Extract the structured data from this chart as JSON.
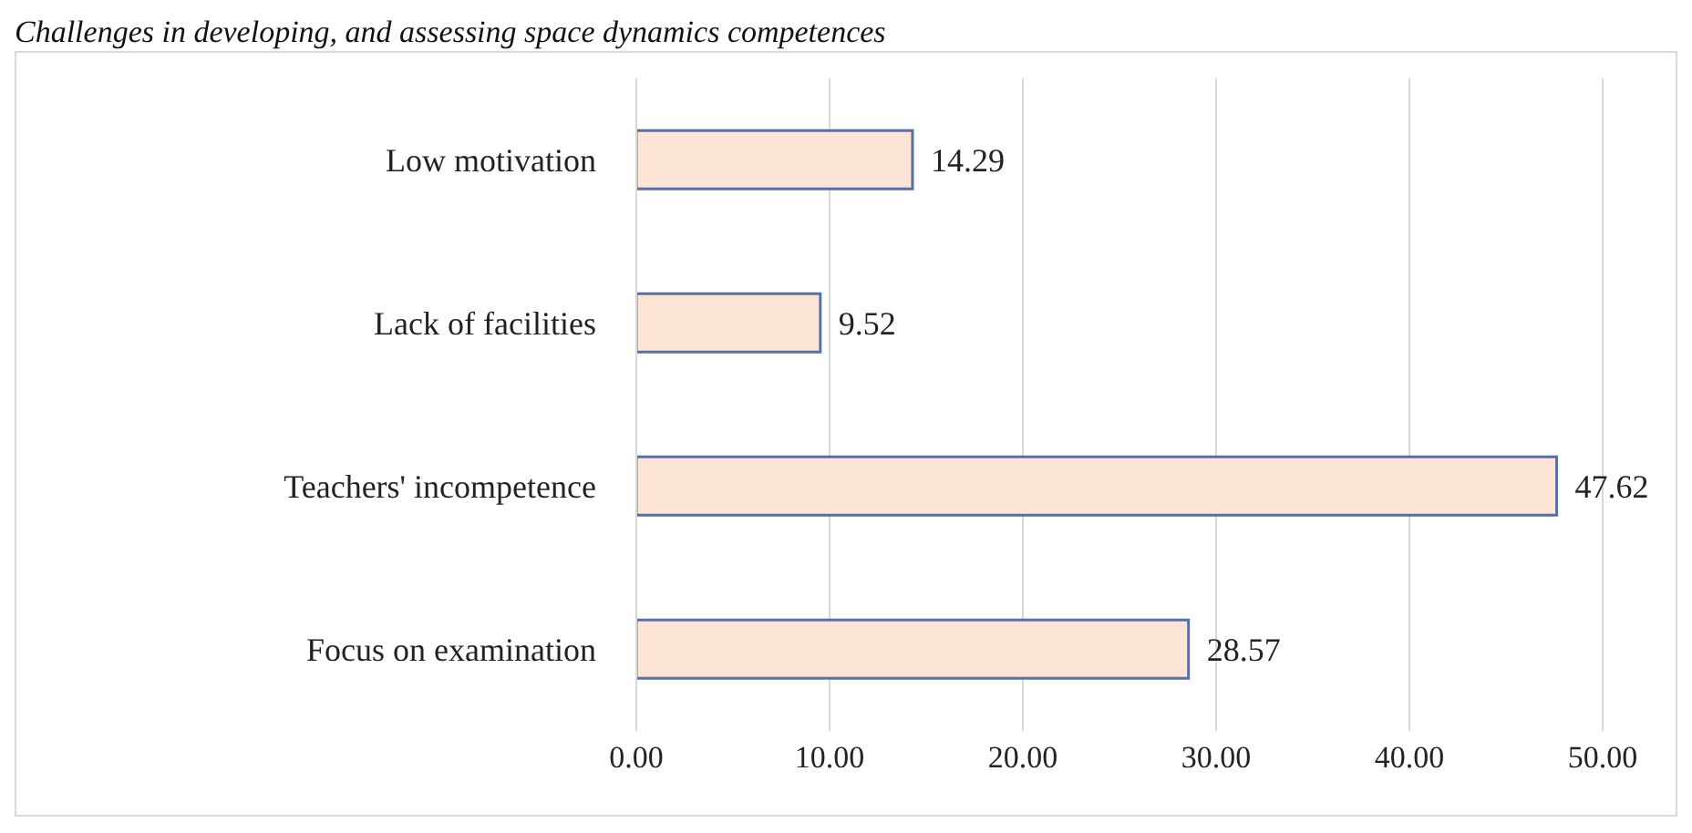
{
  "chart_data": {
    "type": "bar",
    "orientation": "horizontal",
    "title": "Challenges in developing, and assessing space dynamics competences",
    "categories": [
      "Low motivation",
      "Lack of facilities",
      "Teachers' incompetence",
      "Focus on examination"
    ],
    "values": [
      14.29,
      9.52,
      47.62,
      28.57
    ],
    "color": "#fce4d6",
    "xlim": [
      0,
      50
    ],
    "xticks": [
      {
        "value": 0,
        "label": "0.00"
      },
      {
        "value": 10,
        "label": "10.00"
      },
      {
        "value": 20,
        "label": "20.00"
      },
      {
        "value": 30,
        "label": "30.00"
      },
      {
        "value": 40,
        "label": "40.00"
      },
      {
        "value": 50,
        "label": "50.00"
      }
    ],
    "grid": "x",
    "data_labels": true
  }
}
